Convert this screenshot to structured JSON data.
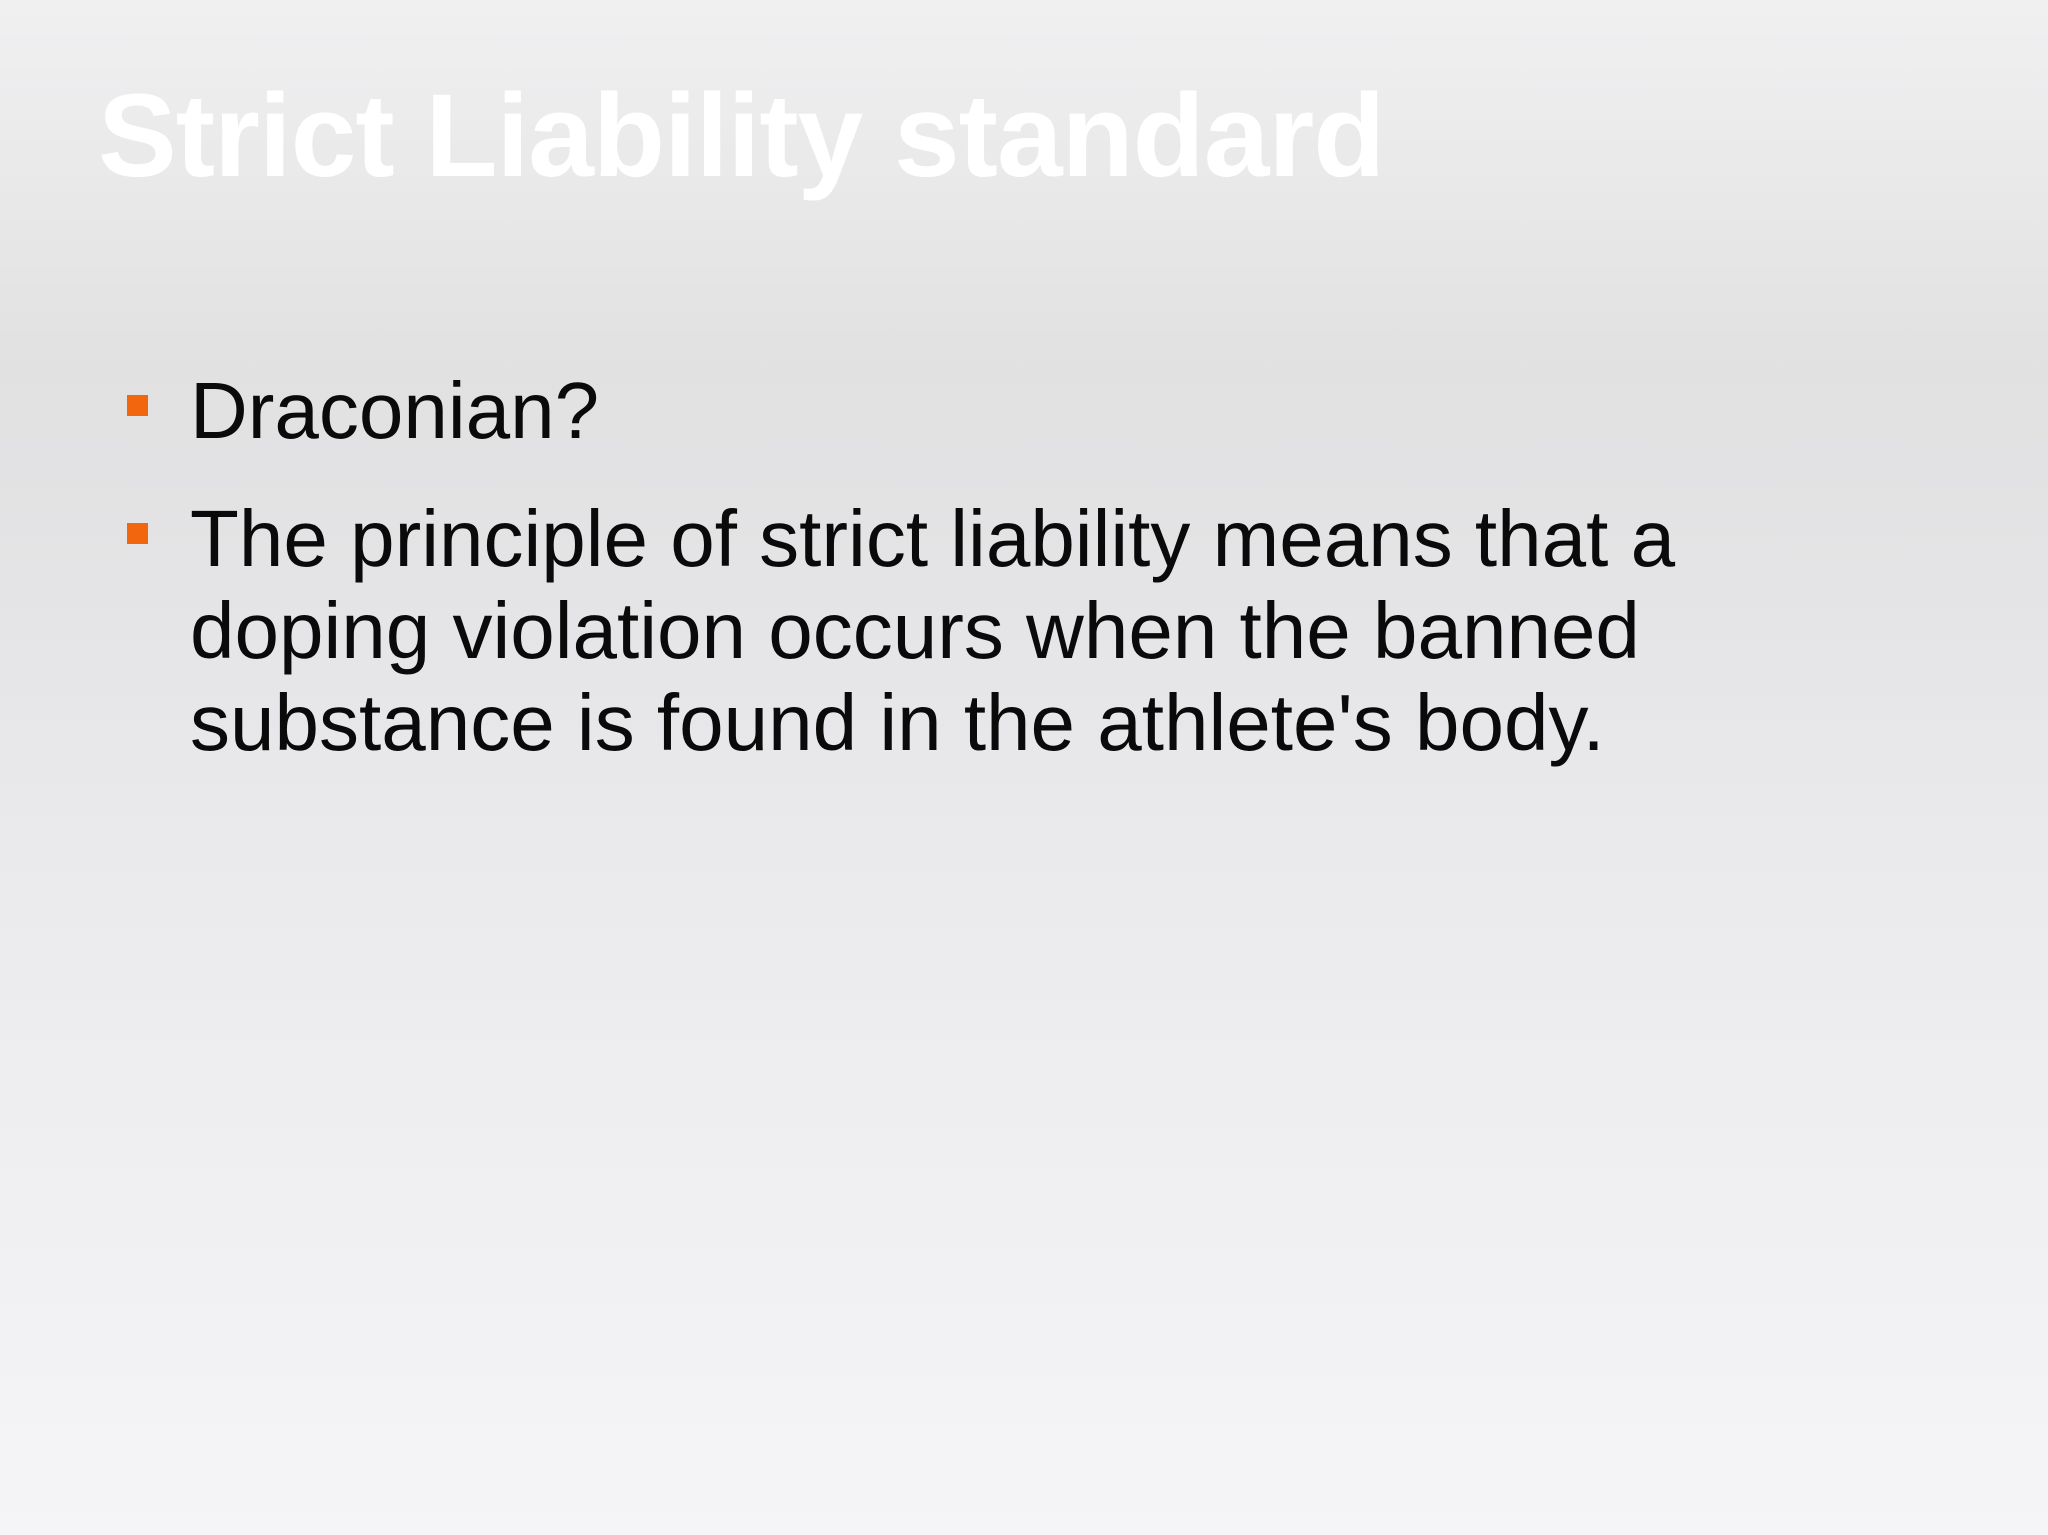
{
  "slide": {
    "title": "Strict Liability standard",
    "bullets": [
      {
        "text": "Draconian?"
      },
      {
        "text": "The principle of strict liability means that a doping violation occurs when the banned substance is found in the athlete's body."
      }
    ]
  },
  "colors": {
    "title": "#ffffff",
    "bullet_marker": "#f2660e",
    "body_text": "#0a0a0a"
  }
}
